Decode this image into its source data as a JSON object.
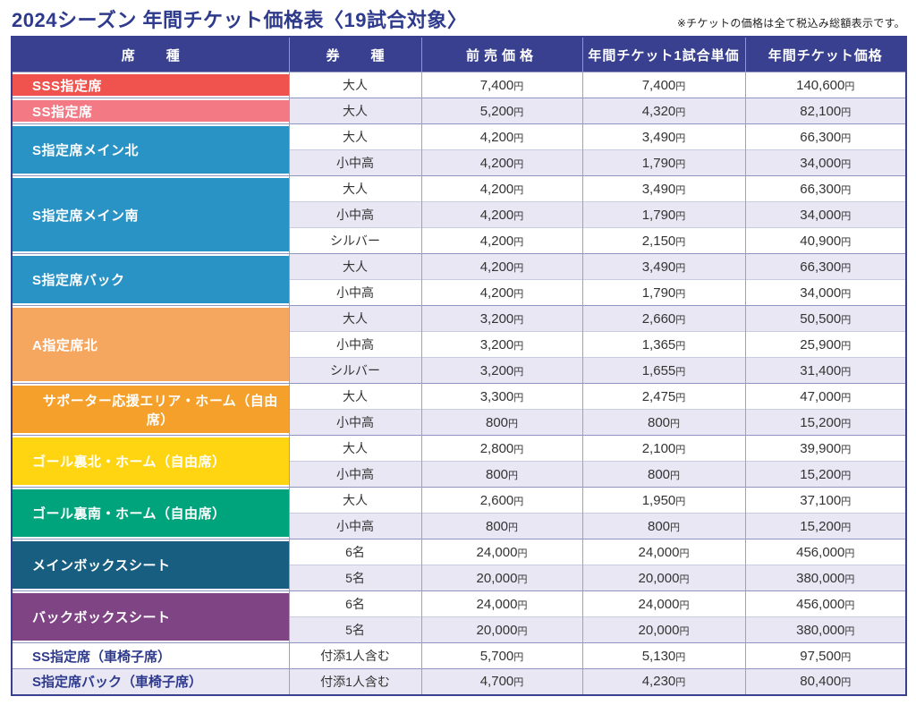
{
  "title": "2024シーズン 年間チケット価格表〈19試合対象〉",
  "note": "※チケットの価格は全て税込み総額表示です。",
  "colors": {
    "header_bg": "#394090",
    "title_text": "#2e3a8c",
    "row_alt_bg": "#e8e7f3",
    "border_outer": "#394090"
  },
  "chart_data": {
    "type": "table",
    "title": "2024シーズン 年間チケット価格表〈19試合対象〉",
    "note": "※チケットの価格は全て税込み総額表示です。",
    "columns": [
      "席　種",
      "券　種",
      "前売価格",
      "年間チケット1試合単価",
      "年間チケット価格"
    ],
    "groups": [
      {
        "seat": "SSS指定席",
        "color": "#f0534d",
        "plain": false,
        "rows": [
          {
            "type": "大人",
            "advance": "7,400円",
            "per_game": "7,400円",
            "annual": "140,600円"
          }
        ]
      },
      {
        "seat": "SS指定席",
        "color": "#f37985",
        "plain": false,
        "rows": [
          {
            "type": "大人",
            "advance": "5,200円",
            "per_game": "4,320円",
            "annual": "82,100円"
          }
        ]
      },
      {
        "seat": "S指定席メイン北",
        "color": "#2a93c5",
        "plain": false,
        "rows": [
          {
            "type": "大人",
            "advance": "4,200円",
            "per_game": "3,490円",
            "annual": "66,300円"
          },
          {
            "type": "小中高",
            "advance": "4,200円",
            "per_game": "1,790円",
            "annual": "34,000円"
          }
        ]
      },
      {
        "seat": "S指定席メイン南",
        "color": "#2a93c5",
        "plain": false,
        "rows": [
          {
            "type": "大人",
            "advance": "4,200円",
            "per_game": "3,490円",
            "annual": "66,300円"
          },
          {
            "type": "小中高",
            "advance": "4,200円",
            "per_game": "1,790円",
            "annual": "34,000円"
          },
          {
            "type": "シルバー",
            "advance": "4,200円",
            "per_game": "2,150円",
            "annual": "40,900円"
          }
        ]
      },
      {
        "seat": "S指定席バック",
        "color": "#2a93c5",
        "plain": false,
        "rows": [
          {
            "type": "大人",
            "advance": "4,200円",
            "per_game": "3,490円",
            "annual": "66,300円"
          },
          {
            "type": "小中高",
            "advance": "4,200円",
            "per_game": "1,790円",
            "annual": "34,000円"
          }
        ]
      },
      {
        "seat": "A指定席北",
        "color": "#f6a75f",
        "plain": false,
        "rows": [
          {
            "type": "大人",
            "advance": "3,200円",
            "per_game": "2,660円",
            "annual": "50,500円"
          },
          {
            "type": "小中高",
            "advance": "3,200円",
            "per_game": "1,365円",
            "annual": "25,900円"
          },
          {
            "type": "シルバー",
            "advance": "3,200円",
            "per_game": "1,655円",
            "annual": "31,400円"
          }
        ]
      },
      {
        "seat": "サポーター応援エリア・ホーム（自由席）",
        "color": "#f5a02b",
        "plain": false,
        "rows": [
          {
            "type": "大人",
            "advance": "3,300円",
            "per_game": "2,475円",
            "annual": "47,000円"
          },
          {
            "type": "小中高",
            "advance": "800円",
            "per_game": "800円",
            "annual": "15,200円"
          }
        ]
      },
      {
        "seat": "ゴール裏北・ホーム（自由席）",
        "color": "#ffd511",
        "plain": false,
        "rows": [
          {
            "type": "大人",
            "advance": "2,800円",
            "per_game": "2,100円",
            "annual": "39,900円"
          },
          {
            "type": "小中高",
            "advance": "800円",
            "per_game": "800円",
            "annual": "15,200円"
          }
        ]
      },
      {
        "seat": "ゴール裏南・ホーム（自由席）",
        "color": "#00a47c",
        "plain": false,
        "rows": [
          {
            "type": "大人",
            "advance": "2,600円",
            "per_game": "1,950円",
            "annual": "37,100円"
          },
          {
            "type": "小中高",
            "advance": "800円",
            "per_game": "800円",
            "annual": "15,200円"
          }
        ]
      },
      {
        "seat": "メインボックスシート",
        "color": "#175e80",
        "plain": false,
        "rows": [
          {
            "type": "6名",
            "advance": "24,000円",
            "per_game": "24,000円",
            "annual": "456,000円"
          },
          {
            "type": "5名",
            "advance": "20,000円",
            "per_game": "20,000円",
            "annual": "380,000円"
          }
        ]
      },
      {
        "seat": "バックボックスシート",
        "color": "#7f4484",
        "plain": false,
        "rows": [
          {
            "type": "6名",
            "advance": "24,000円",
            "per_game": "24,000円",
            "annual": "456,000円"
          },
          {
            "type": "5名",
            "advance": "20,000円",
            "per_game": "20,000円",
            "annual": "380,000円"
          }
        ]
      },
      {
        "seat": "SS指定席（車椅子席）",
        "color": null,
        "plain": true,
        "rows": [
          {
            "type": "付添1人含む",
            "advance": "5,700円",
            "per_game": "5,130円",
            "annual": "97,500円"
          }
        ]
      },
      {
        "seat": "S指定席バック（車椅子席）",
        "color": null,
        "plain": true,
        "rows": [
          {
            "type": "付添1人含む",
            "advance": "4,700円",
            "per_game": "4,230円",
            "annual": "80,400円"
          }
        ]
      }
    ]
  }
}
